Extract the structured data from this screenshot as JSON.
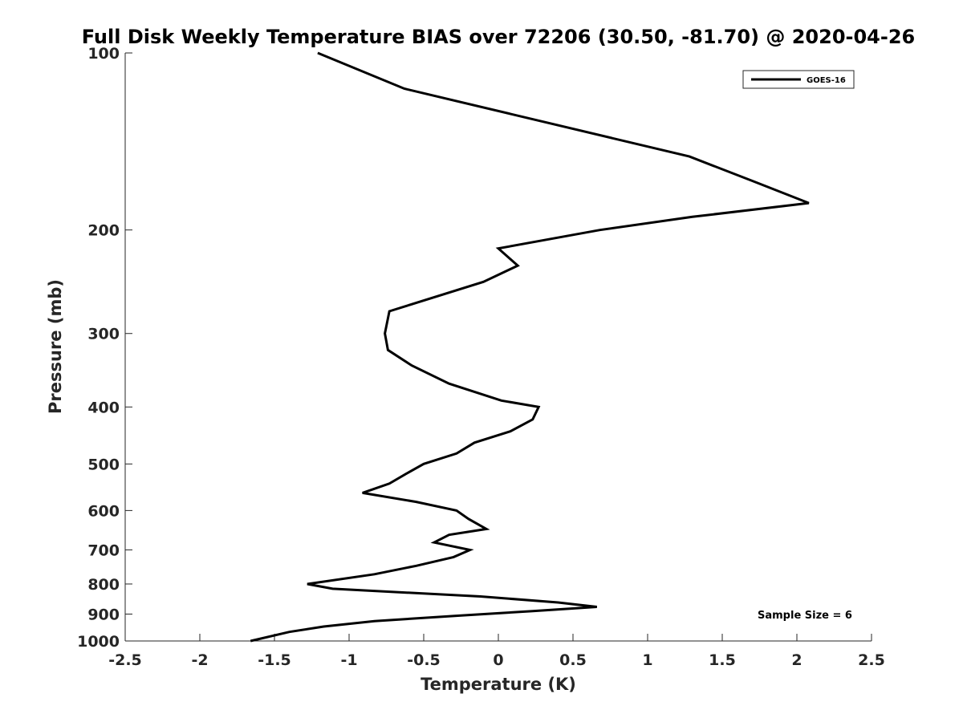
{
  "chart_data": {
    "type": "line",
    "title": "Full Disk Weekly Temperature BIAS over 72206 (30.50, -81.70) @ 2020-04-26",
    "xlabel": "Temperature (K)",
    "ylabel": "Pressure (mb)",
    "xlim": [
      -2.5,
      2.5
    ],
    "ylim": [
      100,
      1000
    ],
    "y_scale": "log",
    "y_reversed": true,
    "x_ticks": [
      "-2.5",
      "-2",
      "-1.5",
      "-1",
      "-0.5",
      "0",
      "0.5",
      "1",
      "1.5",
      "2",
      "2.5"
    ],
    "y_ticks": [
      "100",
      "200",
      "300",
      "400",
      "500",
      "600",
      "700",
      "800",
      "900",
      "1000"
    ],
    "grid": false,
    "legend_position": "top-right",
    "series": [
      {
        "name": "GOES-16",
        "color": "#000000",
        "points": [
          {
            "x": -1.21,
            "y": 100
          },
          {
            "x": -0.63,
            "y": 115
          },
          {
            "x": 1.28,
            "y": 150
          },
          {
            "x": 1.7,
            "y": 165
          },
          {
            "x": 2.08,
            "y": 180
          },
          {
            "x": 1.3,
            "y": 190
          },
          {
            "x": 0.68,
            "y": 200
          },
          {
            "x": 0.0,
            "y": 215
          },
          {
            "x": 0.13,
            "y": 230
          },
          {
            "x": -0.1,
            "y": 245
          },
          {
            "x": -0.73,
            "y": 275
          },
          {
            "x": -0.76,
            "y": 300
          },
          {
            "x": -0.74,
            "y": 320
          },
          {
            "x": -0.58,
            "y": 340
          },
          {
            "x": -0.33,
            "y": 365
          },
          {
            "x": 0.02,
            "y": 390
          },
          {
            "x": 0.27,
            "y": 400
          },
          {
            "x": 0.23,
            "y": 420
          },
          {
            "x": 0.08,
            "y": 440
          },
          {
            "x": -0.16,
            "y": 460
          },
          {
            "x": -0.28,
            "y": 480
          },
          {
            "x": -0.5,
            "y": 500
          },
          {
            "x": -0.62,
            "y": 520
          },
          {
            "x": -0.73,
            "y": 540
          },
          {
            "x": -0.91,
            "y": 560
          },
          {
            "x": -0.55,
            "y": 580
          },
          {
            "x": -0.28,
            "y": 600
          },
          {
            "x": -0.2,
            "y": 620
          },
          {
            "x": -0.08,
            "y": 645
          },
          {
            "x": -0.33,
            "y": 660
          },
          {
            "x": -0.43,
            "y": 680
          },
          {
            "x": -0.19,
            "y": 700
          },
          {
            "x": -0.3,
            "y": 720
          },
          {
            "x": -0.55,
            "y": 745
          },
          {
            "x": -0.83,
            "y": 770
          },
          {
            "x": -1.28,
            "y": 800
          },
          {
            "x": -1.11,
            "y": 815
          },
          {
            "x": -0.12,
            "y": 840
          },
          {
            "x": 0.4,
            "y": 860
          },
          {
            "x": 0.66,
            "y": 875
          },
          {
            "x": 0.22,
            "y": 890
          },
          {
            "x": -0.25,
            "y": 905
          },
          {
            "x": -0.83,
            "y": 925
          },
          {
            "x": -1.17,
            "y": 945
          },
          {
            "x": -1.4,
            "y": 965
          },
          {
            "x": -1.66,
            "y": 1000
          }
        ]
      }
    ],
    "annotations": [
      {
        "text": "Sample Size = 6",
        "position": "bottom-right"
      }
    ]
  }
}
